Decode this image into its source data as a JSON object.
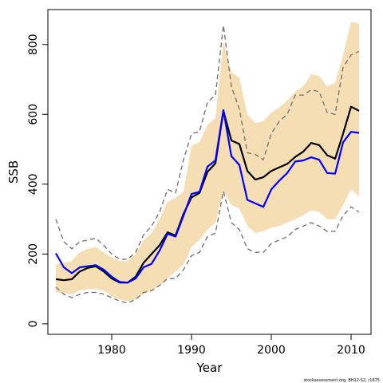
{
  "chart_data": {
    "type": "line",
    "title": "",
    "xlabel": "Year",
    "ylabel": "SSB",
    "xlim": [
      1972,
      2012.5
    ],
    "ylim": [
      -30,
      900
    ],
    "xticks": [
      1980,
      1990,
      2000,
      2010
    ],
    "yticks": [
      0,
      200,
      400,
      600,
      800
    ],
    "grid": false,
    "legend": "none",
    "footnote": "stockassessment.org, BH12-S2, r1875",
    "colors": {
      "band": "#f5deb3",
      "estimate": "#000000",
      "blue": "#0000ff",
      "dashed": "#777777"
    },
    "x": [
      1973,
      1974,
      1975,
      1976,
      1977,
      1978,
      1979,
      1980,
      1981,
      1982,
      1983,
      1984,
      1985,
      1986,
      1987,
      1988,
      1989,
      1990,
      1991,
      1992,
      1993,
      1994,
      1995,
      1996,
      1997,
      1998,
      1999,
      2000,
      2001,
      2002,
      2003,
      2004,
      2005,
      2006,
      2007,
      2008,
      2009,
      2010,
      2011
    ],
    "series": [
      {
        "role": "band_upper",
        "values": [
          170,
          175,
          180,
          205,
          215,
          220,
          205,
          190,
          180,
          180,
          200,
          240,
          260,
          300,
          350,
          360,
          380,
          510,
          520,
          570,
          590,
          810,
          720,
          705,
          600,
          575,
          580,
          605,
          620,
          640,
          665,
          680,
          715,
          710,
          680,
          690,
          770,
          865,
          860
        ]
      },
      {
        "role": "band_lower",
        "values": [
          90,
          88,
          85,
          95,
          100,
          100,
          95,
          80,
          70,
          65,
          70,
          85,
          95,
          110,
          130,
          150,
          170,
          220,
          240,
          270,
          290,
          380,
          340,
          330,
          280,
          260,
          265,
          275,
          280,
          290,
          300,
          310,
          325,
          320,
          300,
          300,
          340,
          385,
          365
        ]
      },
      {
        "role": "upper_dashed",
        "values": [
          300,
          235,
          215,
          235,
          240,
          245,
          225,
          200,
          185,
          185,
          205,
          255,
          280,
          320,
          385,
          375,
          470,
          545,
          550,
          635,
          655,
          855,
          680,
          615,
          490,
          485,
          470,
          545,
          580,
          600,
          655,
          655,
          670,
          665,
          605,
          600,
          735,
          770,
          780
        ]
      },
      {
        "role": "lower_dashed",
        "values": [
          105,
          85,
          75,
          85,
          90,
          90,
          85,
          75,
          65,
          60,
          70,
          90,
          95,
          110,
          130,
          130,
          155,
          195,
          205,
          250,
          260,
          380,
          290,
          270,
          215,
          205,
          205,
          230,
          240,
          250,
          270,
          280,
          290,
          280,
          265,
          265,
          310,
          335,
          320
        ]
      },
      {
        "role": "estimate",
        "values": [
          128,
          125,
          128,
          150,
          160,
          165,
          150,
          130,
          118,
          118,
          135,
          175,
          200,
          225,
          262,
          253,
          315,
          362,
          375,
          435,
          460,
          610,
          525,
          515,
          438,
          413,
          420,
          438,
          448,
          458,
          478,
          493,
          518,
          512,
          483,
          473,
          545,
          622,
          610
        ]
      },
      {
        "role": "blue_line",
        "values": [
          202,
          162,
          145,
          162,
          165,
          168,
          155,
          135,
          120,
          118,
          130,
          162,
          172,
          210,
          258,
          250,
          310,
          372,
          378,
          450,
          468,
          612,
          480,
          455,
          355,
          345,
          335,
          385,
          410,
          432,
          465,
          468,
          477,
          470,
          432,
          430,
          520,
          550,
          547
        ]
      }
    ]
  }
}
